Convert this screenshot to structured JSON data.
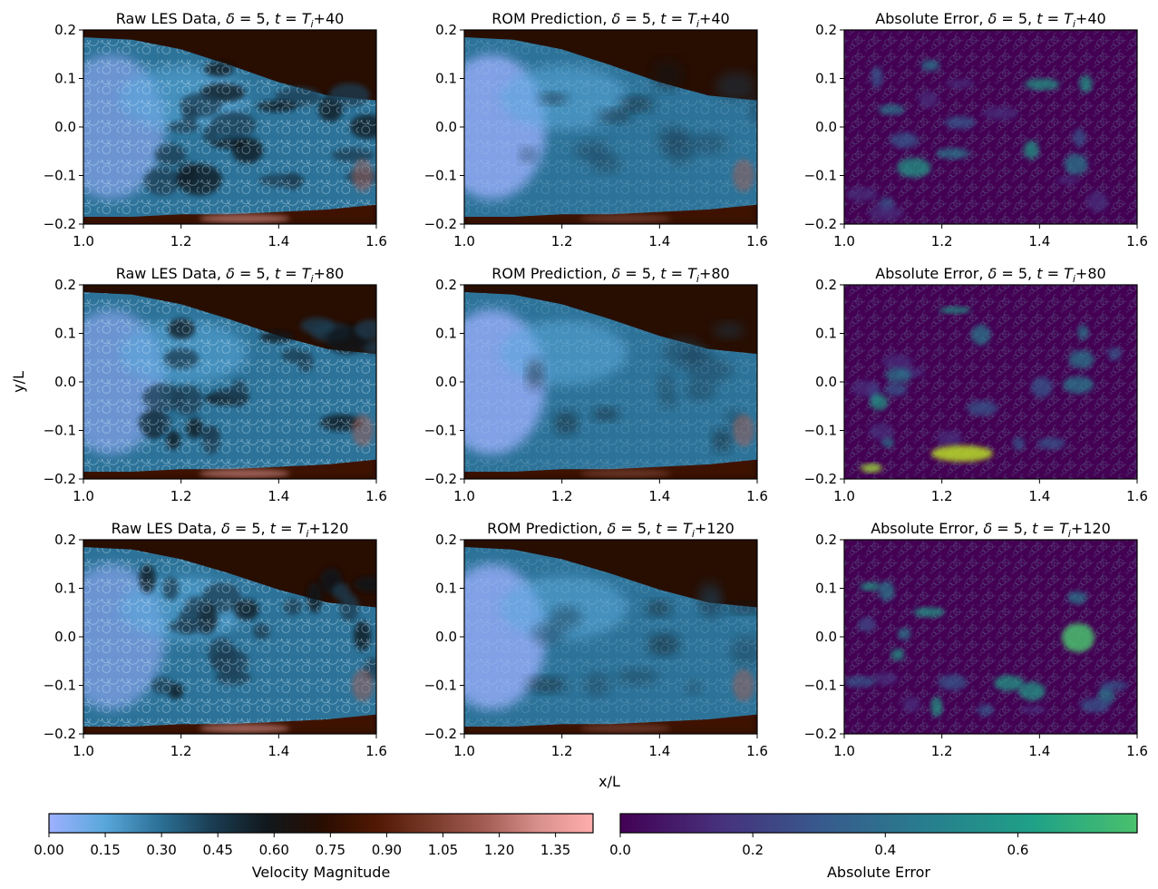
{
  "chart_data": {
    "type": "heatmap",
    "figure_xlabel": "x/L",
    "figure_ylabel": "y/L",
    "xlim": [
      1.0,
      1.6
    ],
    "ylim": [
      -0.2,
      0.2
    ],
    "x_ticks": [
      "1.0",
      "1.2",
      "1.4",
      "1.6"
    ],
    "y_ticks": [
      "0.2",
      "0.1",
      "0.0",
      "−0.1",
      "−0.2"
    ],
    "rows": [
      {
        "time": "40",
        "panels": [
          {
            "name": "Raw LES Data",
            "field": "velocity",
            "title_prefix": "Raw LES Data, ",
            "title_delta": "= 5, ",
            "title_time": "+40"
          },
          {
            "name": "ROM Prediction",
            "field": "velocity",
            "title_prefix": "ROM Prediction, ",
            "title_delta": "= 5, ",
            "title_time": "+40"
          },
          {
            "name": "Absolute Error",
            "field": "error",
            "title_prefix": "Absolute Error, ",
            "title_delta": "= 5, ",
            "title_time": "+40"
          }
        ]
      },
      {
        "time": "80",
        "panels": [
          {
            "name": "Raw LES Data",
            "field": "velocity",
            "title_prefix": "Raw LES Data, ",
            "title_delta": "= 5, ",
            "title_time": "+80"
          },
          {
            "name": "ROM Prediction",
            "field": "velocity",
            "title_prefix": "ROM Prediction, ",
            "title_delta": "= 5, ",
            "title_time": "+80"
          },
          {
            "name": "Absolute Error",
            "field": "error",
            "title_prefix": "Absolute Error, ",
            "title_delta": "= 5, ",
            "title_time": "+80"
          }
        ]
      },
      {
        "time": "120",
        "panels": [
          {
            "name": "Raw LES Data",
            "field": "velocity",
            "title_prefix": "Raw LES Data, ",
            "title_delta": "= 5, ",
            "title_time": "+120"
          },
          {
            "name": "ROM Prediction",
            "field": "velocity",
            "title_prefix": "ROM Prediction, ",
            "title_delta": "= 5, ",
            "title_time": "+120"
          },
          {
            "name": "Absolute Error",
            "field": "error",
            "title_prefix": "Absolute Error, ",
            "title_delta": "= 5, ",
            "title_time": "+120"
          }
        ]
      }
    ],
    "colorbars": [
      {
        "label": "Velocity Magnitude",
        "range": [
          0.0,
          1.45
        ],
        "ticks": [
          "0.00",
          "0.15",
          "0.30",
          "0.45",
          "0.60",
          "0.75",
          "0.90",
          "1.05",
          "1.20",
          "1.35"
        ],
        "colormap": "berlin",
        "colors": [
          "#9eb0ff",
          "#5aa8dc",
          "#2d7399",
          "#1a3d52",
          "#11181d",
          "#280d01",
          "#501803",
          "#783929",
          "#a35c53",
          "#d8918d",
          "#ffadad"
        ]
      },
      {
        "label": "Absolute Error",
        "range": [
          0.0,
          0.78
        ],
        "ticks": [
          "0.0",
          "0.2",
          "0.4",
          "0.6"
        ],
        "colormap": "viridis",
        "colors": [
          "#440154",
          "#46327e",
          "#365c8d",
          "#277f8e",
          "#1fa187",
          "#4ac16d"
        ]
      }
    ],
    "title_symbols": {
      "delta": "δ",
      "t": "t",
      "T": "T",
      "i": "i"
    }
  }
}
